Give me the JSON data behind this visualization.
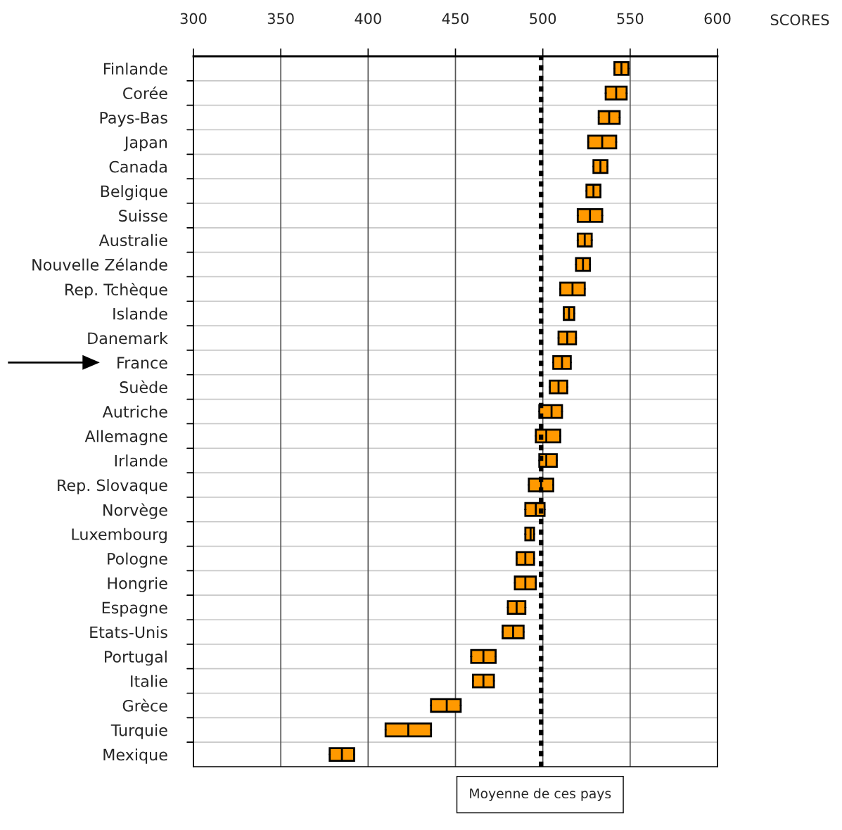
{
  "chart_data": {
    "type": "box",
    "orientation": "horizontal",
    "xlabel": "SCORES",
    "categories": [
      "Finlande",
      "Corée",
      "Pays-Bas",
      "Japan",
      "Canada",
      "Belgique",
      "Suisse",
      "Australie",
      "Nouvelle Zélande",
      "Rep. Tchèque",
      "Islande",
      "Danemark",
      "France",
      "Suède",
      "Autriche",
      "Allemagne",
      "Irlande",
      "Rep. Slovaque",
      "Norvège",
      "Luxembourg",
      "Pologne",
      "Hongrie",
      "Espagne",
      "Etats-Unis",
      "Portugal",
      "Italie",
      "Grèce",
      "Turquie",
      "Mexique"
    ],
    "series": [
      {
        "color": "#ff9900",
        "boxes": [
          {
            "low": 541,
            "q1": 541,
            "median": 545,
            "q3": 549,
            "high": 549
          },
          {
            "low": 536,
            "q1": 536,
            "median": 542,
            "q3": 548,
            "high": 548
          },
          {
            "low": 532,
            "q1": 532,
            "median": 538,
            "q3": 544,
            "high": 544
          },
          {
            "low": 526,
            "q1": 526,
            "median": 534,
            "q3": 542,
            "high": 542
          },
          {
            "low": 529,
            "q1": 529,
            "median": 533,
            "q3": 537,
            "high": 537
          },
          {
            "low": 525,
            "q1": 525,
            "median": 529,
            "q3": 533,
            "high": 533
          },
          {
            "low": 520,
            "q1": 520,
            "median": 527,
            "q3": 534,
            "high": 534
          },
          {
            "low": 520,
            "q1": 520,
            "median": 524,
            "q3": 528,
            "high": 528
          },
          {
            "low": 519,
            "q1": 519,
            "median": 523,
            "q3": 527,
            "high": 527
          },
          {
            "low": 510,
            "q1": 510,
            "median": 517,
            "q3": 524,
            "high": 524
          },
          {
            "low": 512,
            "q1": 512,
            "median": 515,
            "q3": 518,
            "high": 518
          },
          {
            "low": 509,
            "q1": 509,
            "median": 514,
            "q3": 519,
            "high": 519
          },
          {
            "low": 506,
            "q1": 506,
            "median": 511,
            "q3": 516,
            "high": 516
          },
          {
            "low": 504,
            "q1": 504,
            "median": 509,
            "q3": 514,
            "high": 514
          },
          {
            "low": 498,
            "q1": 498,
            "median": 505,
            "q3": 511,
            "high": 511
          },
          {
            "low": 496,
            "q1": 496,
            "median": 502,
            "q3": 510,
            "high": 510
          },
          {
            "low": 498,
            "q1": 498,
            "median": 502,
            "q3": 508,
            "high": 508
          },
          {
            "low": 492,
            "q1": 492,
            "median": 499,
            "q3": 506,
            "high": 506
          },
          {
            "low": 490,
            "q1": 490,
            "median": 496,
            "q3": 501,
            "high": 501
          },
          {
            "low": 490,
            "q1": 490,
            "median": 493,
            "q3": 495,
            "high": 495
          },
          {
            "low": 485,
            "q1": 485,
            "median": 490,
            "q3": 495,
            "high": 495
          },
          {
            "low": 484,
            "q1": 484,
            "median": 490,
            "q3": 496,
            "high": 496
          },
          {
            "low": 480,
            "q1": 480,
            "median": 485,
            "q3": 490,
            "high": 490
          },
          {
            "low": 477,
            "q1": 477,
            "median": 483,
            "q3": 489,
            "high": 489
          },
          {
            "low": 459,
            "q1": 459,
            "median": 466,
            "q3": 473,
            "high": 473
          },
          {
            "low": 460,
            "q1": 460,
            "median": 466,
            "q3": 472,
            "high": 472
          },
          {
            "low": 436,
            "q1": 436,
            "median": 445,
            "q3": 453,
            "high": 453
          },
          {
            "low": 410,
            "q1": 410,
            "median": 423,
            "q3": 436,
            "high": 436
          },
          {
            "low": 378,
            "q1": 378,
            "median": 385,
            "q3": 392,
            "high": 392
          }
        ]
      }
    ],
    "xlim": [
      300,
      600
    ],
    "xticks": [
      300,
      350,
      400,
      450,
      500,
      550,
      600
    ],
    "grid": "x",
    "ref_lines": [
      {
        "axis": "x",
        "value": 499,
        "label": "Moyenne de ces pays",
        "line_style": "dotted",
        "color": "#000000"
      }
    ]
  }
}
